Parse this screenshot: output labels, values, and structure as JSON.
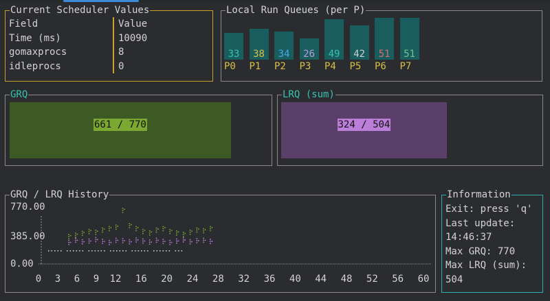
{
  "scheduler": {
    "title": "Current Scheduler Values",
    "header": {
      "field": "Field",
      "value": "Value"
    },
    "rows": [
      {
        "field": "Time (ms)",
        "value": "10090"
      },
      {
        "field": "gomaxprocs",
        "value": "8"
      },
      {
        "field": "idleprocs",
        "value": "0"
      }
    ]
  },
  "run_queues": {
    "title": "Local Run Queues (per P)",
    "bars": [
      {
        "label": "P0",
        "value": 33,
        "color": "#38c1b0"
      },
      {
        "label": "P1",
        "value": 38,
        "color": "#d8c046"
      },
      {
        "label": "P2",
        "value": 34,
        "color": "#4aa8e8"
      },
      {
        "label": "P3",
        "value": 26,
        "color": "#b49ee0"
      },
      {
        "label": "P4",
        "value": 49,
        "color": "#38c1b0"
      },
      {
        "label": "P5",
        "value": 42,
        "color": "#cfcfcf"
      },
      {
        "label": "P6",
        "value": 51,
        "color": "#e06c6c"
      },
      {
        "label": "P7",
        "value": 51,
        "color": "#73c48f"
      }
    ]
  },
  "grq": {
    "title": "GRQ",
    "text": "661 / 770",
    "current": 661,
    "max": 770,
    "color": "#3d5a24",
    "label_bg": "#7aa832"
  },
  "lrq": {
    "title": "LRQ (sum)",
    "text": "324 / 504",
    "current": 324,
    "max": 504,
    "color": "#5b3f6b",
    "label_bg": "#bb7ed9"
  },
  "history": {
    "title": "GRQ / LRQ History",
    "y_ticks": [
      "770.00",
      "385.00",
      "0.00"
    ],
    "x_ticks": [
      "0",
      "3",
      "6",
      "9",
      "12",
      "16",
      "20",
      "24",
      "28",
      "32",
      "36",
      "40",
      "44",
      "48",
      "52",
      "56",
      "60"
    ]
  },
  "info": {
    "title": "Information",
    "lines": [
      "Exit: press 'q'",
      "Last update:",
      "14:46:37",
      "Max GRQ: 770",
      "Max LRQ (sum):",
      "504"
    ]
  }
}
